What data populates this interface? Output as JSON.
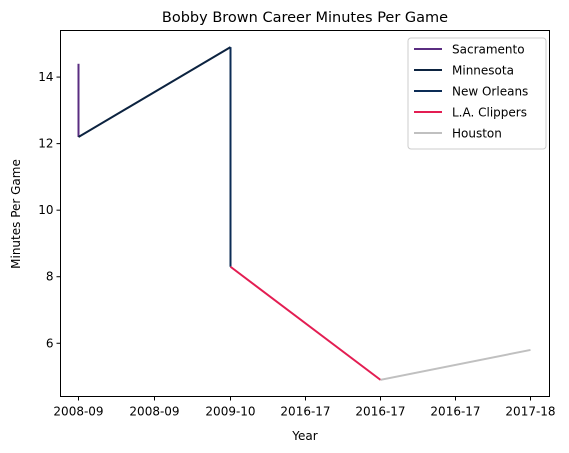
{
  "chart_data": {
    "type": "line",
    "title": "Bobby Brown  Career Minutes Per Game",
    "xlabel": "Year",
    "ylabel": "Minutes Per Game",
    "x_tick_labels": [
      "2008-09",
      "2008-09",
      "2009-10",
      "2016-17",
      "2016-17",
      "2016-17",
      "2017-18"
    ],
    "y_ticks": [
      6,
      8,
      10,
      12,
      14
    ],
    "ylim": [
      4.4,
      15.4
    ],
    "grid": false,
    "legend_position": "top-right",
    "series": [
      {
        "name": "Sacramento",
        "color": "#5a2d81",
        "points": [
          [
            0,
            14.4
          ],
          [
            0,
            12.2
          ]
        ]
      },
      {
        "name": "Minnesota",
        "color": "#0c2340",
        "points": [
          [
            0,
            12.2
          ],
          [
            2,
            14.9
          ]
        ]
      },
      {
        "name": "New Orleans",
        "color": "#0c2c56",
        "points": [
          [
            2,
            14.9
          ],
          [
            2,
            8.3
          ]
        ]
      },
      {
        "name": "L.A. Clippers",
        "color": "#e31d52",
        "points": [
          [
            2,
            8.3
          ],
          [
            4,
            4.9
          ]
        ]
      },
      {
        "name": "Houston",
        "color": "#c0c0c0",
        "points": [
          [
            4,
            4.9
          ],
          [
            6,
            5.8
          ]
        ]
      }
    ]
  }
}
